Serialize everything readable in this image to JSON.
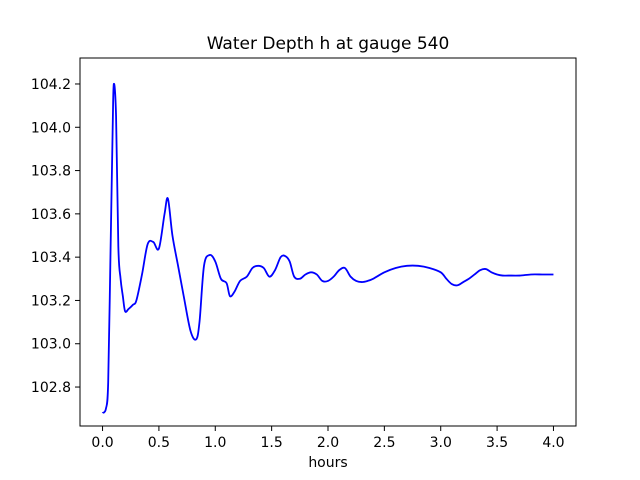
{
  "chart_data": {
    "type": "line",
    "title": "Water Depth h at gauge 540",
    "xlabel": "hours",
    "ylabel": "",
    "xlim": [
      -0.2,
      4.2
    ],
    "ylim": [
      102.62,
      104.32
    ],
    "xticks": [
      0.0,
      0.5,
      1.0,
      1.5,
      2.0,
      2.5,
      3.0,
      3.5,
      4.0
    ],
    "xtick_labels": [
      "0.0",
      "0.5",
      "1.0",
      "1.5",
      "2.0",
      "2.5",
      "3.0",
      "3.5",
      "4.0"
    ],
    "yticks": [
      102.8,
      103.0,
      103.2,
      103.4,
      103.6,
      103.8,
      104.0,
      104.2
    ],
    "ytick_labels": [
      "102.8",
      "103.0",
      "103.2",
      "103.4",
      "103.6",
      "103.8",
      "104.0",
      "104.2"
    ],
    "grid": false,
    "series": [
      {
        "color": "#0000ff",
        "x": [
          0.0,
          0.03,
          0.05,
          0.07,
          0.09,
          0.1,
          0.12,
          0.14,
          0.16,
          0.18,
          0.2,
          0.23,
          0.27,
          0.3,
          0.35,
          0.4,
          0.45,
          0.5,
          0.55,
          0.58,
          0.62,
          0.67,
          0.72,
          0.78,
          0.83,
          0.86,
          0.9,
          0.95,
          1.0,
          1.05,
          1.1,
          1.13,
          1.17,
          1.22,
          1.28,
          1.33,
          1.38,
          1.43,
          1.48,
          1.53,
          1.58,
          1.62,
          1.66,
          1.7,
          1.75,
          1.8,
          1.85,
          1.9,
          1.95,
          2.0,
          2.05,
          2.1,
          2.15,
          2.2,
          2.25,
          2.3,
          2.35,
          2.4,
          2.5,
          2.6,
          2.7,
          2.8,
          2.9,
          3.0,
          3.05,
          3.1,
          3.15,
          3.2,
          3.25,
          3.3,
          3.35,
          3.4,
          3.45,
          3.5,
          3.55,
          3.6,
          3.7,
          3.8,
          3.9,
          3.95,
          4.0
        ],
        "y": [
          102.68,
          102.7,
          102.82,
          103.4,
          104.0,
          104.2,
          104.05,
          103.45,
          103.3,
          103.22,
          103.15,
          103.16,
          103.18,
          103.2,
          103.32,
          103.46,
          103.47,
          103.44,
          103.6,
          103.67,
          103.5,
          103.36,
          103.22,
          103.06,
          103.02,
          103.1,
          103.36,
          103.41,
          103.38,
          103.3,
          103.28,
          103.22,
          103.24,
          103.29,
          103.31,
          103.35,
          103.36,
          103.35,
          103.31,
          103.34,
          103.4,
          103.405,
          103.38,
          103.31,
          103.3,
          103.32,
          103.33,
          103.32,
          103.29,
          103.29,
          103.31,
          103.34,
          103.35,
          103.31,
          103.29,
          103.285,
          103.29,
          103.3,
          103.33,
          103.35,
          103.36,
          103.36,
          103.35,
          103.33,
          103.3,
          103.275,
          103.27,
          103.285,
          103.3,
          103.32,
          103.34,
          103.345,
          103.33,
          103.32,
          103.315,
          103.315,
          103.315,
          103.32,
          103.32,
          103.32,
          103.32
        ]
      }
    ]
  }
}
